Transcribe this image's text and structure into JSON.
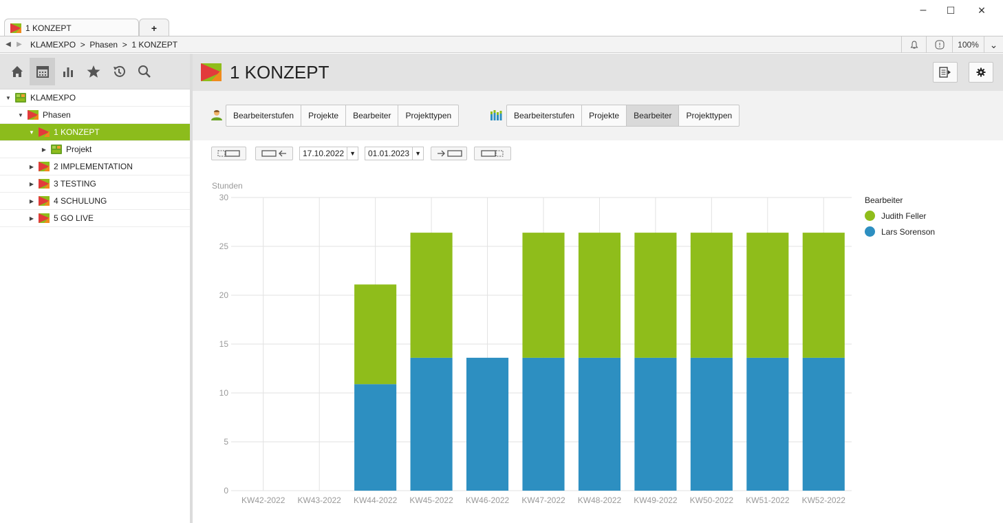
{
  "window": {
    "tab_title": "1 KONZEPT",
    "new_tab_label": "+",
    "minimize": "–",
    "maximize": "☐",
    "close": "✕"
  },
  "address": {
    "back": "◀",
    "forward": "▶",
    "breadcrumb": "KLAMEXPO  >  Phasen  >  1 KONZEPT",
    "zoom": "100%",
    "bell_icon": "bell-icon",
    "info_icon": "info-icon",
    "dropdown": "⌄"
  },
  "sidebar": {
    "tools": [
      "home-icon",
      "calendar-icon",
      "bar-chart-icon",
      "star-icon",
      "history-icon",
      "search-icon"
    ],
    "tree": [
      {
        "label": "KLAMEXPO",
        "level": 0,
        "expanded": true,
        "icon": "project-icon"
      },
      {
        "label": "Phasen",
        "level": 1,
        "expanded": true,
        "icon": "phase-icon"
      },
      {
        "label": "1 KONZEPT",
        "level": 2,
        "expanded": true,
        "icon": "phase-icon",
        "selected": true
      },
      {
        "label": "Projekt",
        "level": 3,
        "expanded": false,
        "icon": "project-icon"
      },
      {
        "label": "2 IMPLEMENTATION",
        "level": 2,
        "expanded": false,
        "icon": "phase-icon"
      },
      {
        "label": "3 TESTING",
        "level": 2,
        "expanded": false,
        "icon": "phase-icon"
      },
      {
        "label": "4 SCHULUNG",
        "level": 2,
        "expanded": false,
        "icon": "phase-icon"
      },
      {
        "label": "5 GO LIVE",
        "level": 2,
        "expanded": false,
        "icon": "phase-icon"
      }
    ]
  },
  "header": {
    "title": "1 KONZEPT"
  },
  "filters": {
    "group1": [
      "Bearbeiterstufen",
      "Projekte",
      "Bearbeiter",
      "Projekttypen"
    ],
    "group2": [
      "Bearbeiterstufen",
      "Projekte",
      "Bearbeiter",
      "Projekttypen"
    ],
    "group2_active": "Bearbeiter"
  },
  "dates": {
    "start": "17.10.2022",
    "end": "01.01.2023"
  },
  "colors": {
    "accent_green": "#8cbc1c",
    "series_green": "#8fbd1b",
    "series_blue": "#2d8fc1"
  },
  "chart_data": {
    "type": "bar",
    "stacked": true,
    "ylabel": "Stunden",
    "ylim": [
      0,
      30
    ],
    "yticks": [
      0,
      5,
      10,
      15,
      20,
      25,
      30
    ],
    "categories": [
      "KW42-2022",
      "KW43-2022",
      "KW44-2022",
      "KW45-2022",
      "KW46-2022",
      "KW47-2022",
      "KW48-2022",
      "KW49-2022",
      "KW50-2022",
      "KW51-2022",
      "KW52-2022"
    ],
    "series": [
      {
        "name": "Lars Sorenson",
        "color": "#2d8fc1",
        "values": [
          0,
          0,
          10.9,
          13.6,
          13.6,
          13.6,
          13.6,
          13.6,
          13.6,
          13.6,
          13.6
        ]
      },
      {
        "name": "Judith Feller",
        "color": "#8fbd1b",
        "values": [
          0,
          0,
          10.2,
          12.8,
          0,
          12.8,
          12.8,
          12.8,
          12.8,
          12.8,
          12.8
        ]
      }
    ],
    "legend_title": "Bearbeiter",
    "legend_order": [
      "Judith Feller",
      "Lars Sorenson"
    ],
    "legend_position": "right",
    "grid": true
  }
}
